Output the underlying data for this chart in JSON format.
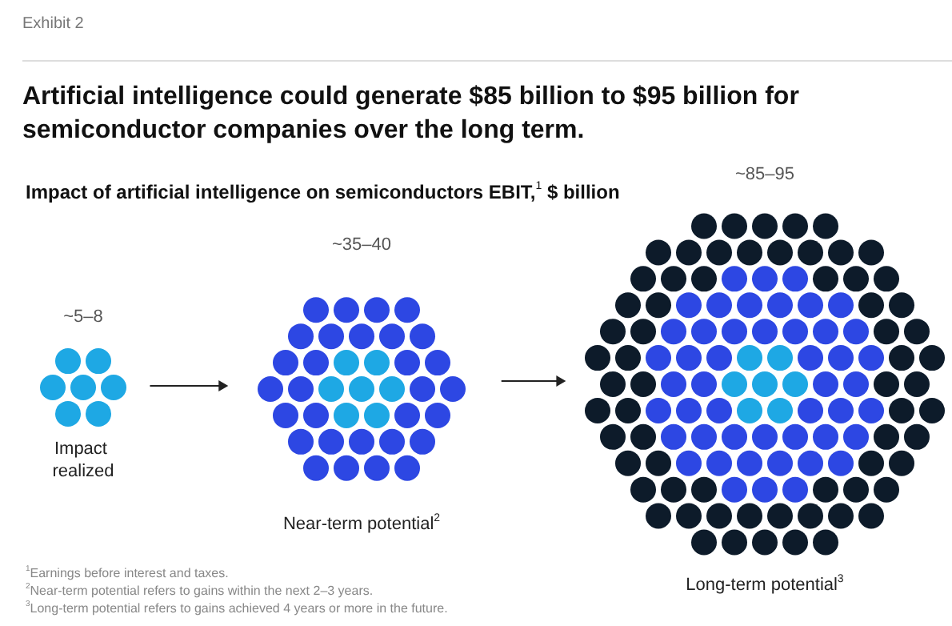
{
  "chart_data": {
    "type": "other",
    "title": "Artificial intelligence could generate $85 billion to $95 billion for semiconductor companies over the long term.",
    "subtitle": "Impact of artificial intelligence on semiconductors EBIT,$^{1}$ $ billion",
    "categories": [
      "Impact realized",
      "Near-term potential$^{2}$",
      "Long-term potential$^{3}$"
    ],
    "values": [
      5,
      35,
      85
    ],
    "value_labels": [
      "~5–8",
      "~35–40",
      "~85–95"
    ],
    "colors": [
      "#1ea8e4",
      "#2d47e3",
      "#0d1b2a"
    ],
    "annotations": [
      "Exhibit 2",
      "$^{1}$Earnings before interest and taxes.",
      "$^{2}$Near-term potential refers to gains within the next 2–3 years.",
      "$^{3}$Long-term potential refers to gains achieved 4 years or more in the future."
    ]
  }
}
